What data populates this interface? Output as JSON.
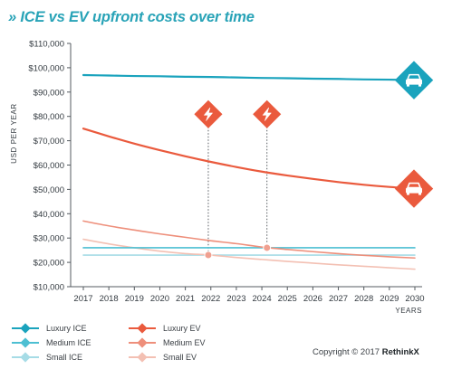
{
  "title": "» ICE vs EV upfront costs over time",
  "copyright": {
    "text": "Copyright © 2017",
    "brand": "RethinkX"
  },
  "chart_data": {
    "type": "line",
    "ylabel": "USD PER YEAR",
    "xlabel": "YEARS",
    "x": [
      2017,
      2018,
      2019,
      2020,
      2021,
      2022,
      2023,
      2024,
      2025,
      2026,
      2027,
      2028,
      2029,
      2030
    ],
    "x_tick_labels": [
      "2017",
      "2018",
      "2019",
      "2020",
      "2021",
      "2022",
      "2023",
      "2024",
      "2025",
      "2026",
      "2027",
      "2028",
      "2029",
      "2030"
    ],
    "ylim": [
      10000,
      110000
    ],
    "y_ticks": [
      10000,
      20000,
      30000,
      40000,
      50000,
      60000,
      70000,
      80000,
      90000,
      100000,
      110000
    ],
    "y_tick_labels": [
      "$10,000",
      "$20,000",
      "$30,000",
      "$40,000",
      "$50,000",
      "$60,000",
      "$70,000",
      "$80,000",
      "$90,000",
      "$100,000",
      "$110,000"
    ],
    "grid": false,
    "legend_position": "bottom",
    "series": [
      {
        "name": "Luxury ICE",
        "color": "#1aa3bd",
        "line_width": 2.2,
        "values": [
          97000,
          96800,
          96600,
          96500,
          96300,
          96200,
          96000,
          95800,
          95700,
          95500,
          95400,
          95200,
          95100,
          94900
        ]
      },
      {
        "name": "Medium ICE",
        "color": "#4dbfd2",
        "line_width": 1.6,
        "values": [
          26000,
          26000,
          26000,
          26000,
          26000,
          26000,
          26000,
          26000,
          26000,
          26000,
          26000,
          26000,
          26000,
          26000
        ]
      },
      {
        "name": "Small ICE",
        "color": "#a6dce6",
        "line_width": 1.6,
        "values": [
          23000,
          23000,
          23000,
          23000,
          23000,
          23000,
          23000,
          23000,
          23000,
          23000,
          23000,
          23000,
          23000,
          23000
        ]
      },
      {
        "name": "Luxury EV",
        "color": "#ea5a3d",
        "line_width": 2.2,
        "values": [
          75000,
          71800,
          68800,
          66100,
          63600,
          61300,
          59200,
          57300,
          55700,
          54300,
          53000,
          51900,
          51000,
          50300
        ]
      },
      {
        "name": "Medium EV",
        "color": "#ee8f7b",
        "line_width": 1.6,
        "values": [
          37000,
          35000,
          33300,
          31700,
          30300,
          28900,
          27700,
          26300,
          25300,
          24400,
          23600,
          22900,
          22300,
          21800
        ]
      },
      {
        "name": "Small EV",
        "color": "#f3c0b3",
        "line_width": 1.6,
        "values": [
          29500,
          27600,
          26000,
          24600,
          23600,
          23000,
          22000,
          21200,
          20400,
          19700,
          19000,
          18400,
          17800,
          17200
        ]
      }
    ],
    "parity_markers": [
      {
        "x": 2021.9,
        "y": 23000,
        "icon": "lightning-bolt-icon",
        "color": "#ea5a3d"
      },
      {
        "x": 2024.2,
        "y": 26000,
        "icon": "lightning-bolt-icon",
        "color": "#ea5a3d"
      }
    ],
    "end_markers": [
      {
        "series": "Luxury ICE",
        "icon": "car-icon",
        "color": "#1aa3bd"
      },
      {
        "series": "Luxury EV",
        "icon": "car-icon",
        "color": "#ea5a3d"
      }
    ]
  }
}
